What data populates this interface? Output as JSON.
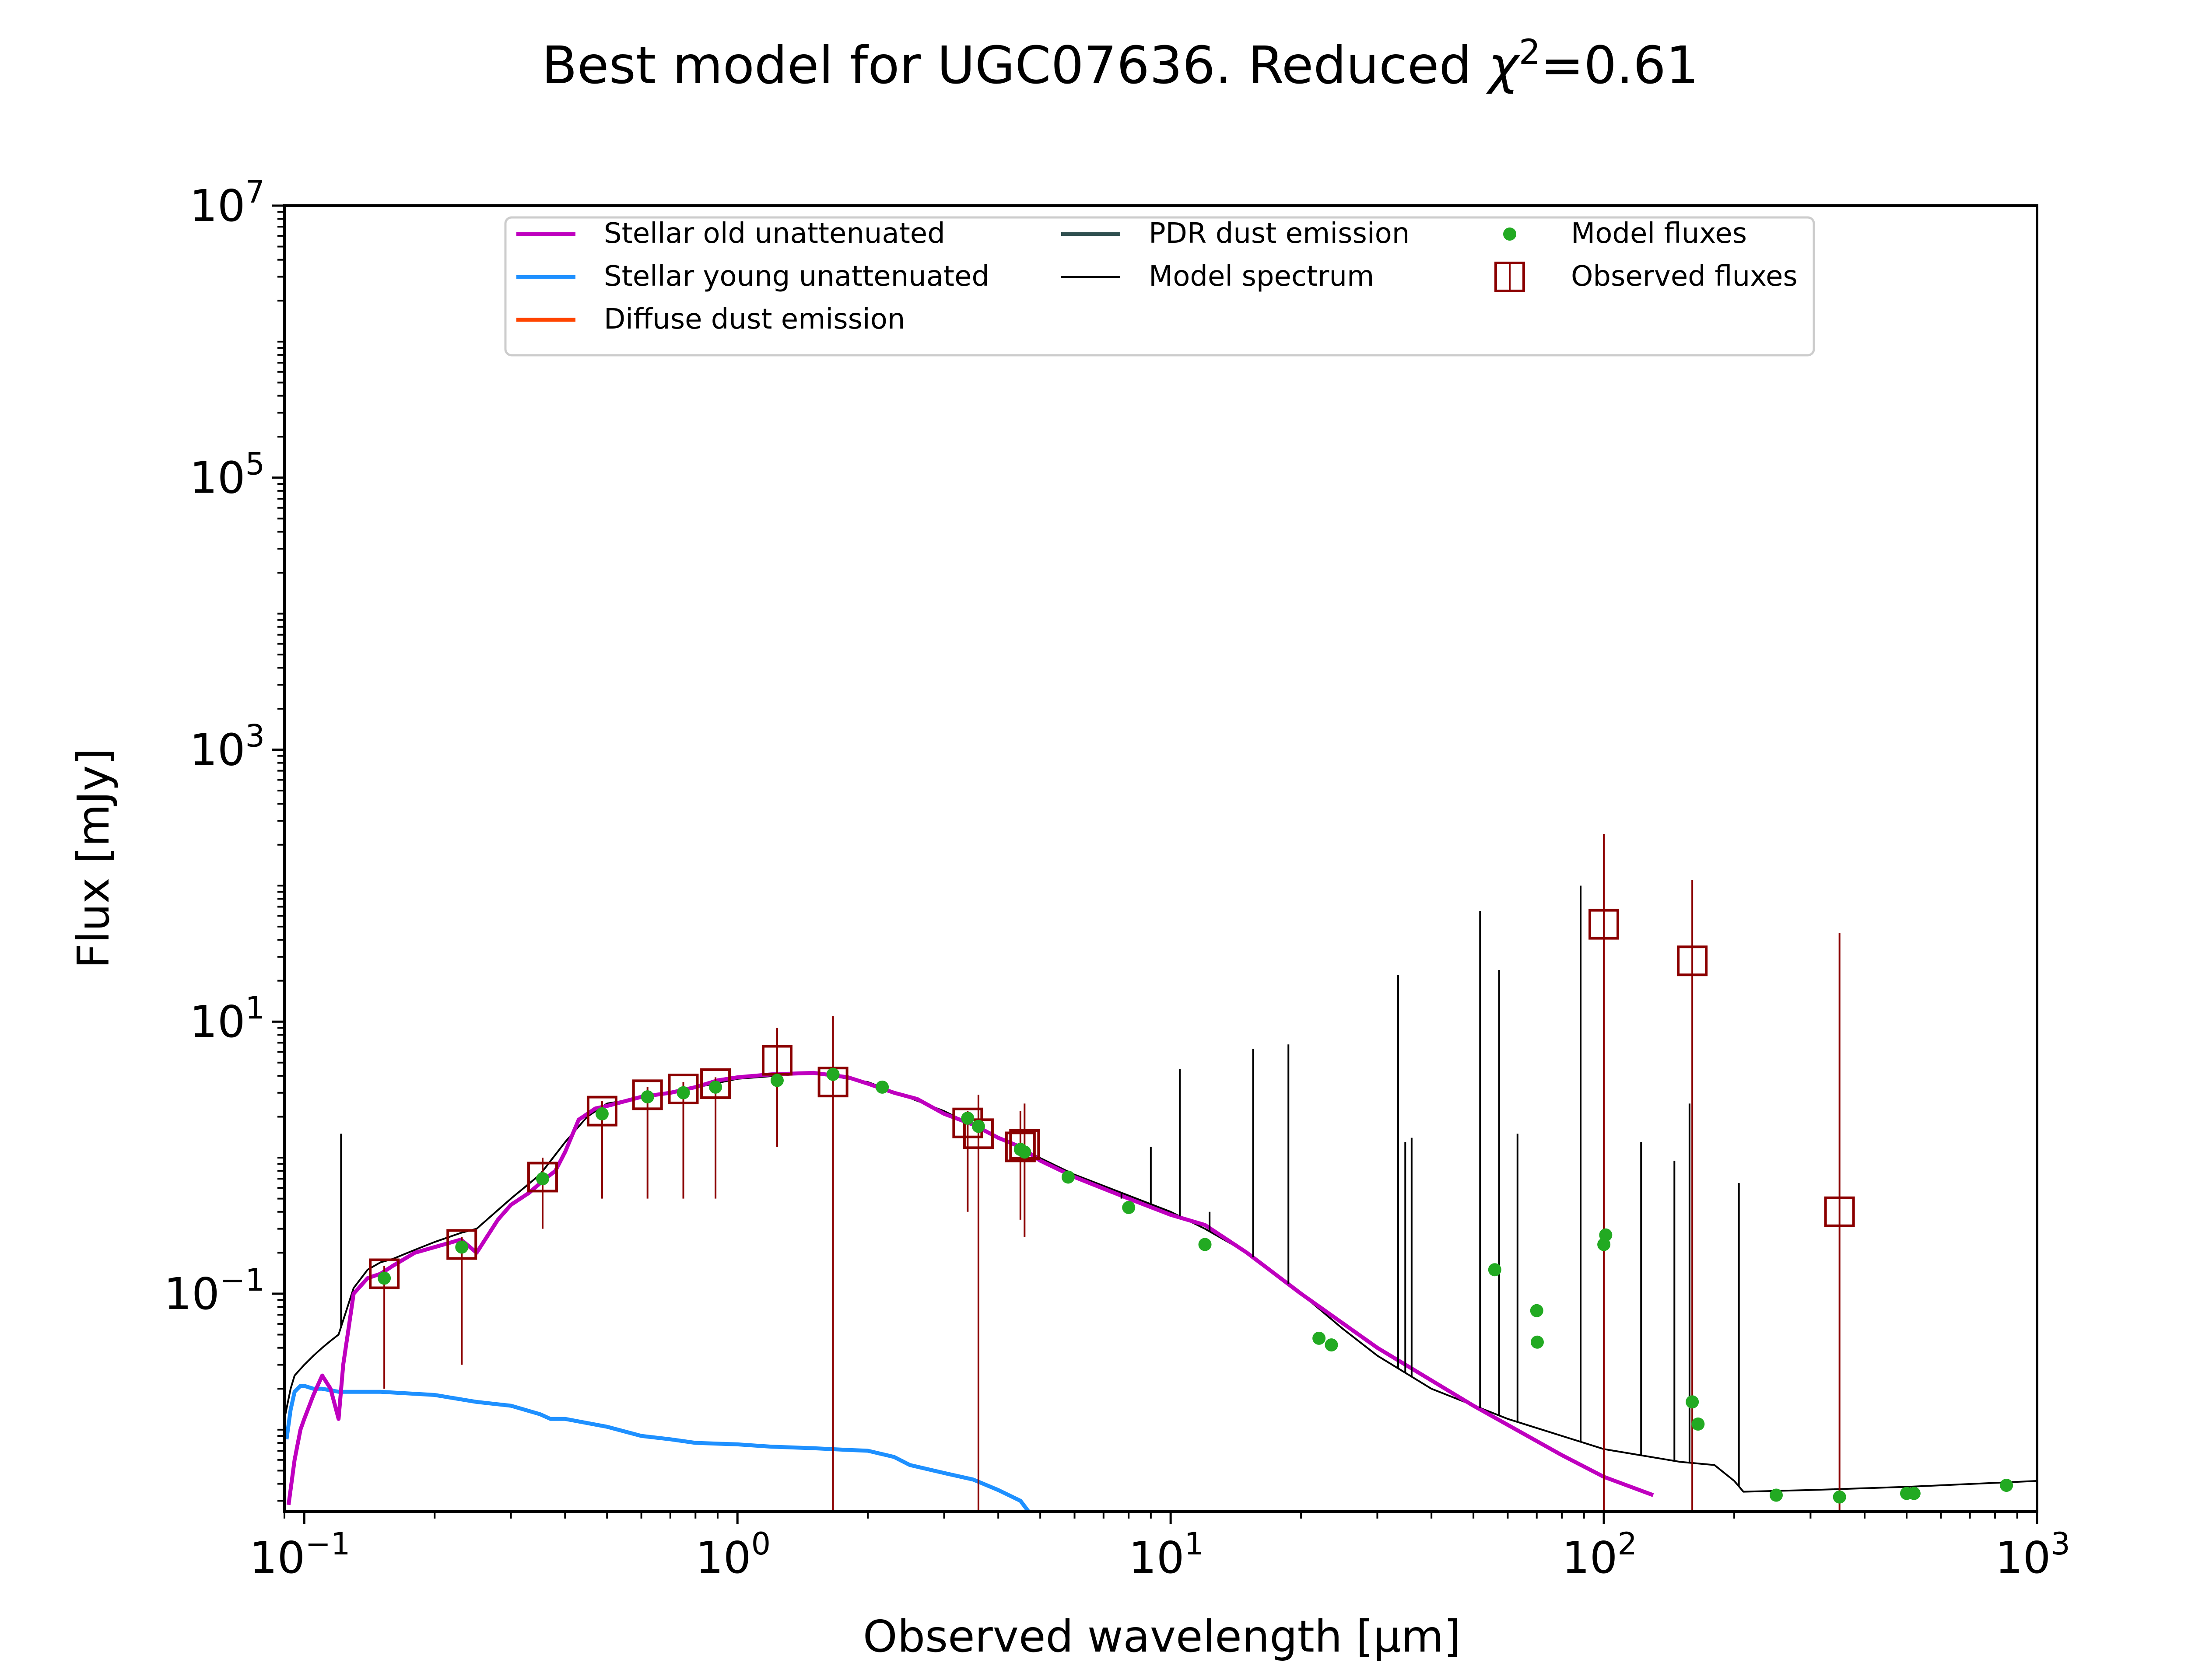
{
  "chart_data": {
    "type": "line",
    "title": "Best model for UGC07636. Reduced χ²=0.61",
    "title_parts": {
      "prefix": "Best model for UGC07636. Reduced ",
      "chi": "χ",
      "sup": "2",
      "suffix": "=0.61"
    },
    "xlabel": "Observed wavelength [μm]",
    "ylabel": "Flux [mJy]",
    "x_scale": "log",
    "y_scale": "log",
    "xlim": [
      0.09,
      1000
    ],
    "ylim": [
      0.0025,
      10000000
    ],
    "grid": false,
    "legend_position": "top-center",
    "x_ticks": [
      {
        "base": "10",
        "exp": "−1",
        "value": 0.1
      },
      {
        "base": "10",
        "exp": "0",
        "value": 1
      },
      {
        "base": "10",
        "exp": "1",
        "value": 10
      },
      {
        "base": "10",
        "exp": "2",
        "value": 100
      },
      {
        "base": "10",
        "exp": "3",
        "value": 1000
      }
    ],
    "y_ticks": [
      {
        "base": "10",
        "exp": "−1",
        "value": 0.1
      },
      {
        "base": "10",
        "exp": "1",
        "value": 10
      },
      {
        "base": "10",
        "exp": "3",
        "value": 1000
      },
      {
        "base": "10",
        "exp": "5",
        "value": 100000
      },
      {
        "base": "10",
        "exp": "7",
        "value": 10000000
      }
    ],
    "legend": [
      {
        "label": "Stellar old unattenuated",
        "kind": "line",
        "color": "#bf00bf"
      },
      {
        "label": "Stellar young unattenuated",
        "kind": "line",
        "color": "#1e90ff"
      },
      {
        "label": "Diffuse dust emission",
        "kind": "line",
        "color": "#ff4500"
      },
      {
        "label": "PDR dust emission",
        "kind": "line",
        "color": "#2f4f4f"
      },
      {
        "label": "Model spectrum",
        "kind": "thinline",
        "color": "#000000"
      },
      {
        "label": "Model fluxes",
        "kind": "dot",
        "color": "#22aa22"
      },
      {
        "label": "Observed fluxes",
        "kind": "square",
        "color": "#8b0000"
      }
    ],
    "series": [
      {
        "name": "Stellar old unattenuated",
        "color": "#bf00bf",
        "x": [
          0.092,
          0.095,
          0.098,
          0.1,
          0.105,
          0.11,
          0.115,
          0.12,
          0.123,
          0.127,
          0.13,
          0.14,
          0.15,
          0.16,
          0.18,
          0.2,
          0.23,
          0.25,
          0.28,
          0.3,
          0.33,
          0.36,
          0.38,
          0.4,
          0.43,
          0.47,
          0.5,
          0.6,
          0.7,
          0.8,
          0.9,
          1.0,
          1.2,
          1.5,
          1.8,
          2.0,
          2.3,
          2.6,
          3.0,
          3.5,
          4.0,
          4.5,
          5.0,
          6.0,
          8.0,
          10.0,
          12.0,
          15.0,
          20.0,
          30.0,
          50.0,
          80.0,
          100.0,
          130.0
        ],
        "y": [
          0.0028,
          0.006,
          0.01,
          0.012,
          0.018,
          0.025,
          0.02,
          0.012,
          0.03,
          0.06,
          0.1,
          0.13,
          0.14,
          0.16,
          0.2,
          0.22,
          0.25,
          0.2,
          0.35,
          0.45,
          0.55,
          0.7,
          0.8,
          1.1,
          1.9,
          2.3,
          2.4,
          2.8,
          3.0,
          3.3,
          3.7,
          3.9,
          4.1,
          4.2,
          3.9,
          3.5,
          3.0,
          2.7,
          2.1,
          1.75,
          1.4,
          1.2,
          0.95,
          0.72,
          0.5,
          0.38,
          0.32,
          0.2,
          0.1,
          0.04,
          0.015,
          0.0065,
          0.0045,
          0.0033
        ]
      },
      {
        "name": "Stellar young unattenuated",
        "color": "#1e90ff",
        "x": [
          0.091,
          0.093,
          0.095,
          0.098,
          0.1,
          0.105,
          0.11,
          0.12,
          0.13,
          0.15,
          0.2,
          0.25,
          0.3,
          0.35,
          0.37,
          0.4,
          0.5,
          0.6,
          0.7,
          0.8,
          1.0,
          1.2,
          1.5,
          1.8,
          2.0,
          2.3,
          2.5,
          3.0,
          3.5,
          4.0,
          4.5,
          4.7
        ],
        "y": [
          0.0085,
          0.014,
          0.019,
          0.021,
          0.021,
          0.02,
          0.02,
          0.019,
          0.019,
          0.019,
          0.018,
          0.016,
          0.015,
          0.013,
          0.012,
          0.012,
          0.0105,
          0.009,
          0.0085,
          0.008,
          0.0078,
          0.0075,
          0.0073,
          0.0071,
          0.007,
          0.0063,
          0.0055,
          0.0048,
          0.0043,
          0.0036,
          0.003,
          0.0025
        ]
      },
      {
        "name": "Model spectrum",
        "color": "#000000",
        "x": [
          0.09,
          0.093,
          0.095,
          0.1,
          0.105,
          0.11,
          0.115,
          0.12,
          0.13,
          0.14,
          0.15,
          0.16,
          0.18,
          0.2,
          0.23,
          0.25,
          0.3,
          0.35,
          0.4,
          0.45,
          0.5,
          0.7,
          1.0,
          1.5,
          2.0,
          3.0,
          4.0,
          6.0,
          10.0,
          12.0,
          15.0,
          20.0,
          25.0,
          30.0,
          40.0,
          60.0,
          100.0,
          150.0,
          180.0,
          200.0,
          210.0,
          300.0,
          500.0,
          1000.0
        ],
        "y": [
          0.012,
          0.02,
          0.025,
          0.03,
          0.035,
          0.04,
          0.045,
          0.05,
          0.11,
          0.15,
          0.17,
          0.18,
          0.21,
          0.24,
          0.28,
          0.3,
          0.5,
          0.75,
          1.3,
          2.0,
          2.5,
          3.0,
          3.8,
          4.2,
          3.6,
          2.2,
          1.4,
          0.75,
          0.4,
          0.3,
          0.2,
          0.1,
          0.055,
          0.035,
          0.02,
          0.012,
          0.0072,
          0.0058,
          0.0055,
          0.0042,
          0.0035,
          0.0036,
          0.0038,
          0.0042
        ]
      }
    ],
    "spectrum_lines": [
      {
        "x": 0.1216,
        "y": 1.5
      },
      {
        "x": 7.7,
        "y": 0.5
      },
      {
        "x": 9.0,
        "y": 1.2
      },
      {
        "x": 10.5,
        "y": 4.5
      },
      {
        "x": 12.3,
        "y": 0.4
      },
      {
        "x": 15.5,
        "y": 6.3
      },
      {
        "x": 18.7,
        "y": 6.8
      },
      {
        "x": 33.5,
        "y": 22
      },
      {
        "x": 34.8,
        "y": 1.3
      },
      {
        "x": 36.0,
        "y": 1.4
      },
      {
        "x": 51.8,
        "y": 65
      },
      {
        "x": 57.3,
        "y": 24
      },
      {
        "x": 63.2,
        "y": 1.5
      },
      {
        "x": 88.4,
        "y": 100
      },
      {
        "x": 121.9,
        "y": 1.3
      },
      {
        "x": 145.5,
        "y": 0.95
      },
      {
        "x": 157.7,
        "y": 2.5
      },
      {
        "x": 205.0,
        "y": 0.65
      }
    ],
    "model_fluxes": {
      "x": [
        0.153,
        0.231,
        0.355,
        0.487,
        0.62,
        0.75,
        0.89,
        1.235,
        1.662,
        2.159,
        3.4,
        3.6,
        4.5,
        4.6,
        5.8,
        8.0,
        12.0,
        22.0,
        23.5,
        56.0,
        70.0,
        70.2,
        100.0,
        101.0,
        160.0,
        165.0,
        250.0,
        350.0,
        500.0,
        520.0,
        850.0
      ],
      "y": [
        0.13,
        0.22,
        0.7,
        2.1,
        2.8,
        3.0,
        3.3,
        3.7,
        4.1,
        3.3,
        1.95,
        1.7,
        1.15,
        1.1,
        0.72,
        0.43,
        0.23,
        0.047,
        0.042,
        0.15,
        0.075,
        0.044,
        0.23,
        0.27,
        0.016,
        0.011,
        0.0033,
        0.0032,
        0.0034,
        0.0034,
        0.0039
      ]
    },
    "observed_fluxes": {
      "x": [
        0.153,
        0.231,
        0.355,
        0.487,
        0.62,
        0.75,
        0.89,
        1.235,
        1.662,
        3.4,
        3.6,
        4.5,
        4.6,
        100.0,
        160.0,
        350.0
      ],
      "y": [
        0.14,
        0.23,
        0.72,
        2.2,
        2.9,
        3.2,
        3.5,
        5.2,
        3.6,
        1.8,
        1.5,
        1.2,
        1.25,
        52,
        28,
        0.4
      ],
      "err_low": [
        0.02,
        0.03,
        0.3,
        0.5,
        0.5,
        0.5,
        0.5,
        1.2,
        0.0025,
        0.4,
        0.0025,
        0.35,
        0.26,
        0.0025,
        0.0025,
        0.0025
      ],
      "err_high": [
        0.16,
        0.26,
        1.0,
        2.6,
        3.3,
        3.6,
        3.9,
        9.0,
        11,
        2.2,
        2.9,
        2.2,
        2.5,
        240,
        110,
        45
      ]
    }
  }
}
